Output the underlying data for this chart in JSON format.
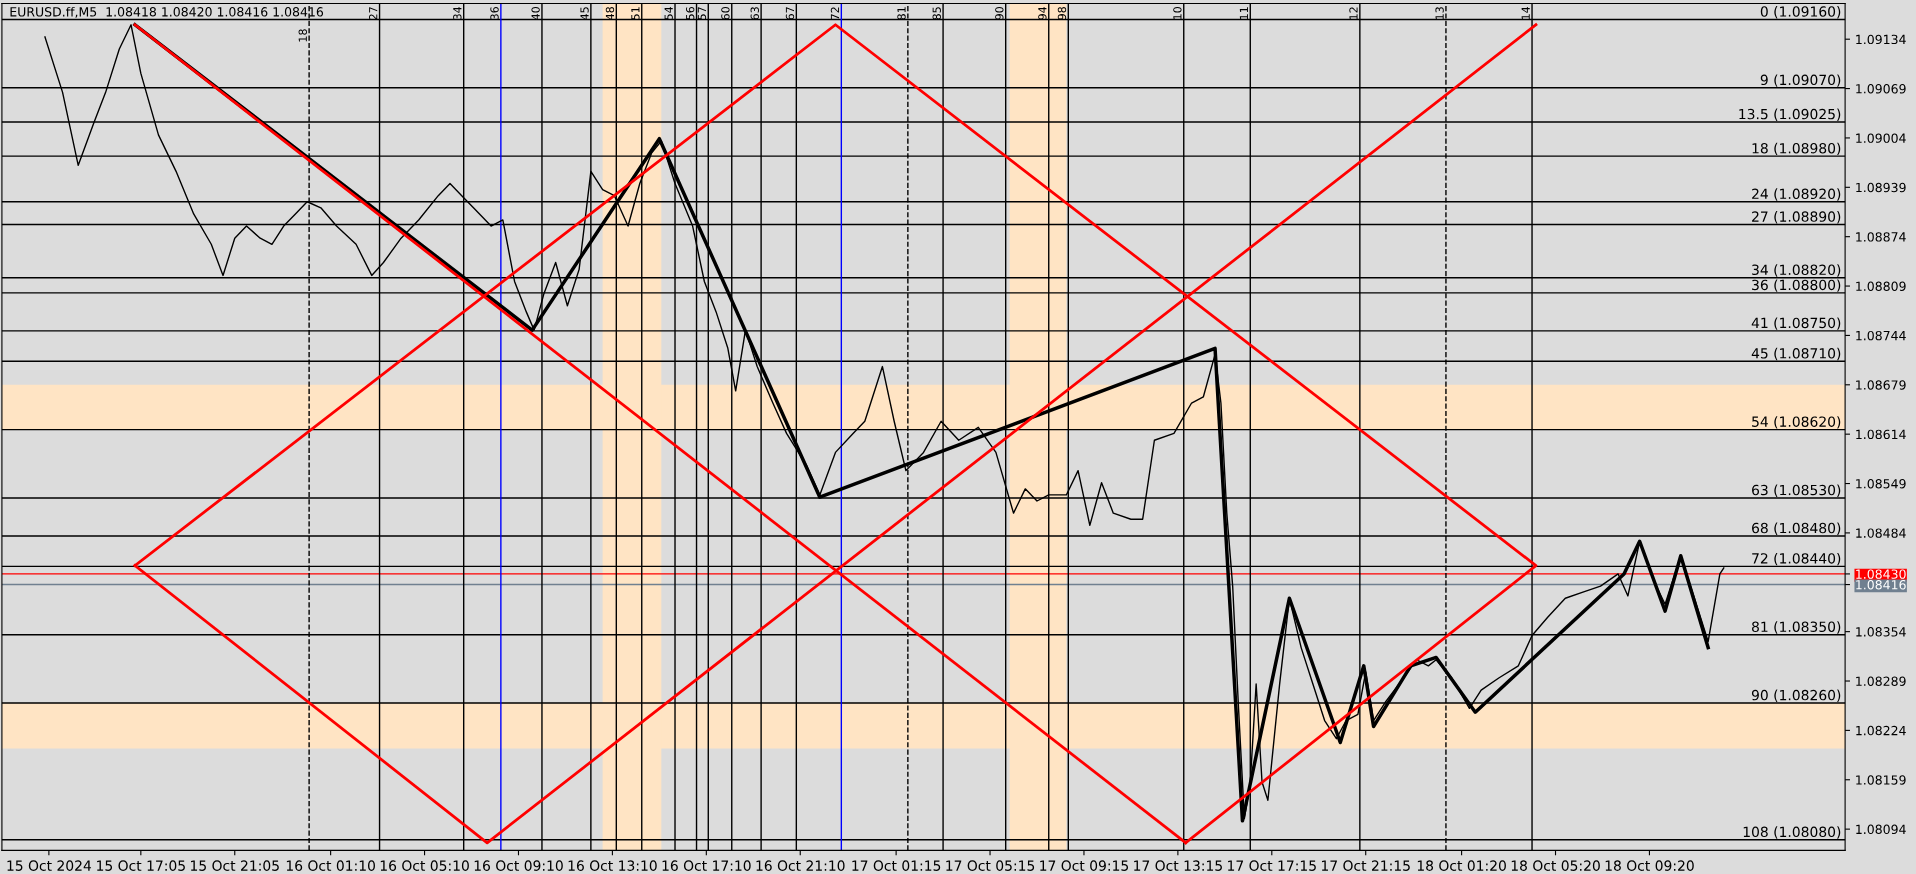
{
  "chart_data": {
    "type": "line",
    "title": "EURUSD.ff,M5  1.08418 1.08420 1.08416 1.08416",
    "legend": false,
    "grid": false,
    "marker": "none",
    "line_style": "solid",
    "xlim": [
      "2024-10-15T11:10",
      "2024-10-18T17:40"
    ],
    "ylim": [
      1.08066,
      1.09181
    ],
    "xticks": [
      {
        "value": "2024-10-15T13:10",
        "label": "15 Oct 2024"
      },
      {
        "value": "2024-10-15T17:05",
        "label": "15 Oct 17:05"
      },
      {
        "value": "2024-10-15T21:05",
        "label": "15 Oct 21:05"
      },
      {
        "value": "2024-10-16T01:10",
        "label": "16 Oct 01:10"
      },
      {
        "value": "2024-10-16T05:10",
        "label": "16 Oct 05:10"
      },
      {
        "value": "2024-10-16T09:10",
        "label": "16 Oct 09:10"
      },
      {
        "value": "2024-10-16T13:10",
        "label": "16 Oct 13:10"
      },
      {
        "value": "2024-10-16T17:10",
        "label": "16 Oct 17:10"
      },
      {
        "value": "2024-10-16T21:10",
        "label": "16 Oct 21:10"
      },
      {
        "value": "2024-10-17T01:15",
        "label": "17 Oct 01:15"
      },
      {
        "value": "2024-10-17T05:15",
        "label": "17 Oct 05:15"
      },
      {
        "value": "2024-10-17T09:15",
        "label": "17 Oct 09:15"
      },
      {
        "value": "2024-10-17T13:15",
        "label": "17 Oct 13:15"
      },
      {
        "value": "2024-10-17T17:15",
        "label": "17 Oct 17:15"
      },
      {
        "value": "2024-10-17T21:15",
        "label": "17 Oct 21:15"
      },
      {
        "value": "2024-10-18T01:20",
        "label": "18 Oct 01:20"
      },
      {
        "value": "2024-10-18T05:20",
        "label": "18 Oct 05:20"
      },
      {
        "value": "2024-10-18T09:20",
        "label": "18 Oct 09:20"
      }
    ],
    "yticks": [
      1.09134,
      1.09069,
      1.09004,
      1.08939,
      1.08874,
      1.08809,
      1.08744,
      1.08679,
      1.08614,
      1.08549,
      1.08484,
      {
        "value": 1.0843,
        "label": "1.08430"
      },
      {
        "value": 1.08416,
        "label": "1.08416"
      },
      1.08354,
      1.08289,
      1.08224,
      1.08159,
      1.08094
    ],
    "series": [
      {
        "color": "#000000",
        "x": [
          "2024-10-15T13:00",
          "2024-10-15T13:45",
          "2024-10-15T14:25",
          "2024-10-15T15:05",
          "2024-10-15T15:35",
          "2024-10-15T16:10",
          "2024-10-15T16:40",
          "2024-10-15T17:05",
          "2024-10-15T17:50",
          "2024-10-15T18:35",
          "2024-10-15T19:20",
          "2024-10-15T20:05",
          "2024-10-15T20:35",
          "2024-10-15T21:05",
          "2024-10-15T21:35",
          "2024-10-15T22:10",
          "2024-10-15T22:40",
          "2024-10-15T23:10",
          "2024-10-15T23:40",
          "2024-10-16T00:10",
          "2024-10-16T00:45",
          "2024-10-16T01:25",
          "2024-10-16T02:15",
          "2024-10-16T02:55",
          "2024-10-16T03:25",
          "2024-10-16T04:10",
          "2024-10-16T04:55",
          "2024-10-16T05:45",
          "2024-10-16T06:15",
          "2024-10-16T06:45",
          "2024-10-16T07:15",
          "2024-10-16T08:00",
          "2024-10-16T08:30",
          "2024-10-16T09:00",
          "2024-10-16T09:30",
          "2024-10-16T09:50",
          "2024-10-16T10:15",
          "2024-10-16T10:45",
          "2024-10-16T11:15",
          "2024-10-16T11:45",
          "2024-10-16T12:15",
          "2024-10-16T12:45",
          "2024-10-16T13:15",
          "2024-10-16T13:50",
          "2024-10-16T14:20",
          "2024-10-16T14:50",
          "2024-10-16T15:15",
          "2024-10-16T15:50",
          "2024-10-16T16:35",
          "2024-10-16T17:05",
          "2024-10-16T17:35",
          "2024-10-16T18:05",
          "2024-10-16T18:25",
          "2024-10-16T18:50",
          "2024-10-16T19:20",
          "2024-10-16T20:00",
          "2024-10-16T20:35",
          "2024-10-16T21:25",
          "2024-10-16T22:00",
          "2024-10-16T22:40",
          "2024-10-16T23:25",
          "2024-10-16T23:55",
          "2024-10-17T00:40",
          "2024-10-17T01:10",
          "2024-10-17T01:40",
          "2024-10-17T02:25",
          "2024-10-17T03:10",
          "2024-10-17T03:55",
          "2024-10-17T04:45",
          "2024-10-17T05:30",
          "2024-10-17T06:15",
          "2024-10-17T06:45",
          "2024-10-17T07:15",
          "2024-10-17T07:45",
          "2024-10-17T08:30",
          "2024-10-17T09:00",
          "2024-10-17T09:30",
          "2024-10-17T10:00",
          "2024-10-17T10:30",
          "2024-10-17T11:15",
          "2024-10-17T11:45",
          "2024-10-17T12:15",
          "2024-10-17T13:05",
          "2024-10-17T13:50",
          "2024-10-17T14:20",
          "2024-10-17T14:50",
          "2024-10-17T15:05",
          "2024-10-17T15:20",
          "2024-10-17T15:35",
          "2024-10-17T15:50",
          "2024-10-17T16:05",
          "2024-10-17T16:20",
          "2024-10-17T16:35",
          "2024-10-17T16:50",
          "2024-10-17T17:05",
          "2024-10-17T17:35",
          "2024-10-17T18:00",
          "2024-10-17T18:30",
          "2024-10-17T19:00",
          "2024-10-17T19:30",
          "2024-10-17T20:00",
          "2024-10-17T20:25",
          "2024-10-17T20:55",
          "2024-10-17T21:15",
          "2024-10-17T21:35",
          "2024-10-17T22:05",
          "2024-10-17T22:40",
          "2024-10-17T23:25",
          "2024-10-17T23:55",
          "2024-10-18T00:15",
          "2024-10-18T00:55",
          "2024-10-18T01:40",
          "2024-10-18T02:10",
          "2024-10-18T02:55",
          "2024-10-18T03:45",
          "2024-10-18T04:20",
          "2024-10-18T05:00",
          "2024-10-18T05:45",
          "2024-10-18T06:30",
          "2024-10-18T07:15",
          "2024-10-18T08:00",
          "2024-10-18T08:25",
          "2024-10-18T08:55",
          "2024-10-18T09:30",
          "2024-10-18T10:00",
          "2024-10-18T10:40",
          "2024-10-18T11:15",
          "2024-10-18T11:50",
          "2024-10-18T12:20",
          "2024-10-18T12:30"
        ],
        "values": [
          1.09137,
          1.09064,
          1.08968,
          1.09024,
          1.09064,
          1.09121,
          1.09153,
          1.09089,
          1.09008,
          1.0896,
          1.08904,
          1.08864,
          1.08823,
          1.08872,
          1.08888,
          1.08872,
          1.08864,
          1.08888,
          1.08904,
          1.0892,
          1.08912,
          1.08888,
          1.08864,
          1.08823,
          1.0884,
          1.08872,
          1.08896,
          1.08928,
          1.08944,
          1.08928,
          1.08912,
          1.08888,
          1.08896,
          1.08815,
          1.08775,
          1.08751,
          1.08799,
          1.0884,
          1.08783,
          1.08831,
          1.0896,
          1.08936,
          1.08928,
          1.08888,
          1.08944,
          1.08984,
          1.09,
          1.08944,
          1.08888,
          1.08815,
          1.08775,
          1.08727,
          1.08671,
          1.08751,
          1.08703,
          1.08655,
          1.08615,
          1.08574,
          1.08534,
          1.0859,
          1.08615,
          1.08631,
          1.08703,
          1.08631,
          1.08566,
          1.0859,
          1.08631,
          1.08606,
          1.08623,
          1.0859,
          1.0851,
          1.08542,
          1.08526,
          1.08534,
          1.08534,
          1.08566,
          1.08494,
          1.0855,
          1.0851,
          1.08502,
          1.08502,
          1.08606,
          1.08615,
          1.08655,
          1.08663,
          1.08719,
          1.08655,
          1.0851,
          1.08414,
          1.08253,
          1.08108,
          1.08156,
          1.08285,
          1.08156,
          1.08132,
          1.08285,
          1.08398,
          1.08333,
          1.08285,
          1.08237,
          1.08213,
          1.08237,
          1.08245,
          1.08301,
          1.08237,
          1.08261,
          1.08285,
          1.08317,
          1.08309,
          1.08317,
          1.08293,
          1.08253,
          1.08277,
          1.08293,
          1.08309,
          1.08349,
          1.08373,
          1.08398,
          1.08406,
          1.08414,
          1.0843,
          1.08401,
          1.08473,
          1.08422,
          1.0839,
          1.08454,
          1.08398,
          1.08341,
          1.0843,
          1.08438
        ]
      },
      {
        "color": "#000000",
        "x": [
          "2024-10-15T16:50",
          "2024-10-16T09:45",
          "2024-10-16T15:10",
          "2024-10-16T22:00",
          "2024-10-17T14:50",
          "2024-10-17T16:00",
          "2024-10-17T18:00",
          "2024-10-17T20:10",
          "2024-10-17T21:10",
          "2024-10-17T21:35",
          "2024-10-17T23:10",
          "2024-10-18T00:15",
          "2024-10-18T01:55",
          "2024-10-18T08:15",
          "2024-10-18T08:55",
          "2024-10-18T10:00",
          "2024-10-18T10:40",
          "2024-10-18T11:50"
        ],
        "values": [
          1.09153,
          1.08751,
          1.09003,
          1.08531,
          1.08727,
          1.08105,
          1.08398,
          1.08208,
          1.08309,
          1.08229,
          1.08309,
          1.0832,
          1.08248,
          1.0843,
          1.08473,
          1.08381,
          1.08454,
          1.08333
        ]
      },
      {
        "color": "#ff0000",
        "x": [
          "2024-10-15T16:50",
          "2024-10-16T22:40",
          "2024-10-18T04:30",
          "2024-10-17T13:35"
        ],
        "values": [
          1.08441,
          1.09153,
          1.08441,
          1.08076
        ]
      },
      {
        "color": "#ff0000",
        "x": [
          "2024-10-15T16:50",
          "2024-10-16T07:50",
          "2024-10-18T04:30"
        ],
        "values": [
          1.08441,
          1.08076,
          1.09153
        ]
      },
      {
        "color": "#ff0000",
        "x": [
          "2024-10-15T16:50",
          "2024-10-17T13:35"
        ],
        "values": [
          1.09153,
          1.08076
        ]
      }
    ],
    "annotations": [
      "18",
      "27",
      "34",
      "36",
      "40",
      "45",
      "48",
      "51",
      "54",
      "56",
      "57",
      "60",
      "63",
      "67",
      "72",
      "81",
      "85",
      "90",
      "94",
      "98",
      "10",
      "11",
      "12",
      "13",
      "14"
    ],
    "ref_lines": [
      {
        "axis": "y",
        "value": 1.0916,
        "label": "0 (1.09160)"
      },
      {
        "axis": "y",
        "value": 1.0907,
        "label": "9 (1.09070)"
      },
      {
        "axis": "y",
        "value": 1.09025,
        "label": "13.5 (1.09025)"
      },
      {
        "axis": "y",
        "value": 1.0898,
        "label": "18 (1.08980)"
      },
      {
        "axis": "y",
        "value": 1.0892,
        "label": "24 (1.08920)"
      },
      {
        "axis": "y",
        "value": 1.0889,
        "label": "27 (1.08890)"
      },
      {
        "axis": "y",
        "value": 1.0882,
        "label": "34 (1.08820)"
      },
      {
        "axis": "y",
        "value": 1.088,
        "label": "36 (1.08800)"
      },
      {
        "axis": "y",
        "value": 1.0875,
        "label": "41 (1.08750)"
      },
      {
        "axis": "y",
        "value": 1.0871,
        "label": "45 (1.08710)"
      },
      {
        "axis": "y",
        "value": 1.0862,
        "label": "54 (1.08620)"
      },
      {
        "axis": "y",
        "value": 1.0853,
        "label": "63 (1.08530)"
      },
      {
        "axis": "y",
        "value": 1.0848,
        "label": "68 (1.08480)"
      },
      {
        "axis": "y",
        "value": 1.0844,
        "label": "72 (1.08440)"
      },
      {
        "axis": "y",
        "value": 1.0835,
        "label": "81 (1.08350)"
      },
      {
        "axis": "y",
        "value": 1.0826,
        "label": "90 (1.08260)"
      },
      {
        "axis": "y",
        "value": 1.0808,
        "label": "108 (1.08080)"
      },
      {
        "axis": "y",
        "value": 1.0843,
        "color": "#ff0000"
      },
      {
        "axis": "y",
        "value": 1.08416,
        "color": "#708090"
      },
      {
        "axis": "x",
        "value": "2024-10-16T00:15",
        "line_style": "dashed"
      },
      {
        "axis": "x",
        "value": "2024-10-16T03:15"
      },
      {
        "axis": "x",
        "value": "2024-10-16T06:50"
      },
      {
        "axis": "x",
        "value": "2024-10-16T08:25",
        "color": "#0000ff"
      },
      {
        "axis": "x",
        "value": "2024-10-16T10:10"
      },
      {
        "axis": "x",
        "value": "2024-10-16T12:15"
      },
      {
        "axis": "x",
        "value": "2024-10-16T13:20"
      },
      {
        "axis": "x",
        "value": "2024-10-16T14:25"
      },
      {
        "axis": "x",
        "value": "2024-10-16T15:50"
      },
      {
        "axis": "x",
        "value": "2024-10-16T16:45"
      },
      {
        "axis": "x",
        "value": "2024-10-16T17:15"
      },
      {
        "axis": "x",
        "value": "2024-10-16T18:15"
      },
      {
        "axis": "x",
        "value": "2024-10-16T19:30"
      },
      {
        "axis": "x",
        "value": "2024-10-16T21:00"
      },
      {
        "axis": "x",
        "value": "2024-10-16T22:55",
        "color": "#0000ff"
      },
      {
        "axis": "x",
        "value": "2024-10-17T01:45",
        "line_style": "dashed"
      },
      {
        "axis": "x",
        "value": "2024-10-17T03:15"
      },
      {
        "axis": "x",
        "value": "2024-10-17T05:55"
      },
      {
        "axis": "x",
        "value": "2024-10-17T07:45"
      },
      {
        "axis": "x",
        "value": "2024-10-17T08:35"
      },
      {
        "axis": "x",
        "value": "2024-10-17T13:30"
      },
      {
        "axis": "x",
        "value": "2024-10-17T16:20"
      },
      {
        "axis": "x",
        "value": "2024-10-17T21:00"
      },
      {
        "axis": "x",
        "value": "2024-10-18T00:40",
        "line_style": "dashed"
      },
      {
        "axis": "x",
        "value": "2024-10-18T04:20"
      }
    ],
    "bands": [
      {
        "axis": "y",
        "from": 1.0862,
        "to": 1.08679,
        "color": "#ffe4c4"
      },
      {
        "axis": "y",
        "from": 1.082,
        "to": 1.0826,
        "color": "#ffe4c4"
      },
      {
        "axis": "x",
        "from": "2024-10-16T12:45",
        "to": "2024-10-16T15:15",
        "color": "#ffe4c4"
      },
      {
        "axis": "x",
        "from": "2024-10-17T06:05",
        "to": "2024-10-17T08:30",
        "color": "#ffe4c4"
      }
    ]
  }
}
